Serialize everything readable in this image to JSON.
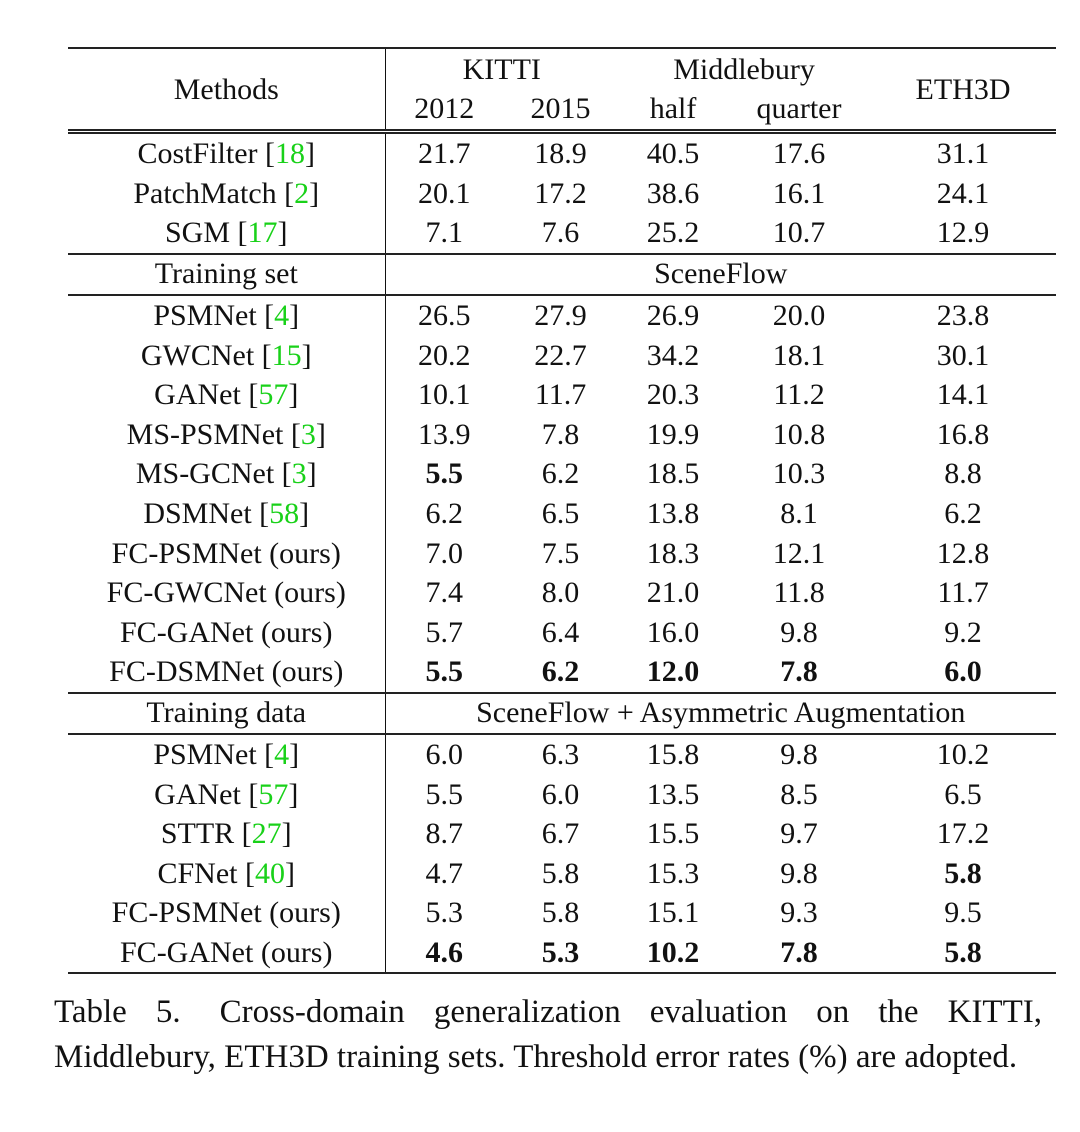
{
  "table": {
    "header": {
      "methods_label": "Methods",
      "groups": [
        {
          "label": "KITTI",
          "sub": [
            "2012",
            "2015"
          ]
        },
        {
          "label": "Middlebury",
          "sub": [
            "half",
            "quarter"
          ]
        },
        {
          "label": "ETH3D",
          "sub": []
        }
      ]
    },
    "sections": [
      {
        "label": "",
        "training": "",
        "rows": [
          {
            "method": "CostFilter",
            "ref": "18",
            "values": [
              "21.7",
              "18.9",
              "40.5",
              "17.6",
              "31.1"
            ],
            "bold": [
              false,
              false,
              false,
              false,
              false
            ]
          },
          {
            "method": "PatchMatch",
            "ref": "2",
            "values": [
              "20.1",
              "17.2",
              "38.6",
              "16.1",
              "24.1"
            ],
            "bold": [
              false,
              false,
              false,
              false,
              false
            ]
          },
          {
            "method": "SGM",
            "ref": "17",
            "values": [
              "7.1",
              "7.6",
              "25.2",
              "10.7",
              "12.9"
            ],
            "bold": [
              false,
              false,
              false,
              false,
              false
            ]
          }
        ]
      },
      {
        "label": "Training set",
        "training": "SceneFlow",
        "rows": [
          {
            "method": "PSMNet",
            "ref": "4",
            "values": [
              "26.5",
              "27.9",
              "26.9",
              "20.0",
              "23.8"
            ],
            "bold": [
              false,
              false,
              false,
              false,
              false
            ]
          },
          {
            "method": "GWCNet",
            "ref": "15",
            "values": [
              "20.2",
              "22.7",
              "34.2",
              "18.1",
              "30.1"
            ],
            "bold": [
              false,
              false,
              false,
              false,
              false
            ]
          },
          {
            "method": "GANet",
            "ref": "57",
            "values": [
              "10.1",
              "11.7",
              "20.3",
              "11.2",
              "14.1"
            ],
            "bold": [
              false,
              false,
              false,
              false,
              false
            ]
          },
          {
            "method": "MS-PSMNet",
            "ref": "3",
            "values": [
              "13.9",
              "7.8",
              "19.9",
              "10.8",
              "16.8"
            ],
            "bold": [
              false,
              false,
              false,
              false,
              false
            ]
          },
          {
            "method": "MS-GCNet",
            "ref": "3",
            "values": [
              "5.5",
              "6.2",
              "18.5",
              "10.3",
              "8.8"
            ],
            "bold": [
              true,
              false,
              false,
              false,
              false
            ]
          },
          {
            "method": "DSMNet",
            "ref": "58",
            "values": [
              "6.2",
              "6.5",
              "13.8",
              "8.1",
              "6.2"
            ],
            "bold": [
              false,
              false,
              false,
              false,
              false
            ]
          },
          {
            "method": "FC-PSMNet (ours)",
            "ref": "",
            "values": [
              "7.0",
              "7.5",
              "18.3",
              "12.1",
              "12.8"
            ],
            "bold": [
              false,
              false,
              false,
              false,
              false
            ]
          },
          {
            "method": "FC-GWCNet (ours)",
            "ref": "",
            "values": [
              "7.4",
              "8.0",
              "21.0",
              "11.8",
              "11.7"
            ],
            "bold": [
              false,
              false,
              false,
              false,
              false
            ]
          },
          {
            "method": "FC-GANet (ours)",
            "ref": "",
            "values": [
              "5.7",
              "6.4",
              "16.0",
              "9.8",
              "9.2"
            ],
            "bold": [
              false,
              false,
              false,
              false,
              false
            ]
          },
          {
            "method": "FC-DSMNet (ours)",
            "ref": "",
            "values": [
              "5.5",
              "6.2",
              "12.0",
              "7.8",
              "6.0"
            ],
            "bold": [
              true,
              true,
              true,
              true,
              true
            ]
          }
        ]
      },
      {
        "label": "Training data",
        "training": "SceneFlow + Asymmetric Augmentation",
        "rows": [
          {
            "method": "PSMNet",
            "ref": "4",
            "values": [
              "6.0",
              "6.3",
              "15.8",
              "9.8",
              "10.2"
            ],
            "bold": [
              false,
              false,
              false,
              false,
              false
            ]
          },
          {
            "method": "GANet",
            "ref": "57",
            "values": [
              "5.5",
              "6.0",
              "13.5",
              "8.5",
              "6.5"
            ],
            "bold": [
              false,
              false,
              false,
              false,
              false
            ]
          },
          {
            "method": "STTR",
            "ref": "27",
            "values": [
              "8.7",
              "6.7",
              "15.5",
              "9.7",
              "17.2"
            ],
            "bold": [
              false,
              false,
              false,
              false,
              false
            ]
          },
          {
            "method": "CFNet",
            "ref": "40",
            "values": [
              "4.7",
              "5.8",
              "15.3",
              "9.8",
              "5.8"
            ],
            "bold": [
              false,
              false,
              false,
              false,
              true
            ]
          },
          {
            "method": "FC-PSMNet (ours)",
            "ref": "",
            "values": [
              "5.3",
              "5.8",
              "15.1",
              "9.3",
              "9.5"
            ],
            "bold": [
              false,
              false,
              false,
              false,
              false
            ]
          },
          {
            "method": "FC-GANet (ours)",
            "ref": "",
            "values": [
              "4.6",
              "5.3",
              "10.2",
              "7.8",
              "5.8"
            ],
            "bold": [
              true,
              true,
              true,
              true,
              true
            ]
          }
        ]
      }
    ]
  },
  "caption": {
    "label": "Table 5.",
    "text": "Cross-domain generalization evaluation on the KITTI, Middlebury, ETH3D training sets. Threshold error rates (%) are adopted."
  },
  "colors": {
    "reference_link": "#19d119",
    "text": "#111111"
  }
}
